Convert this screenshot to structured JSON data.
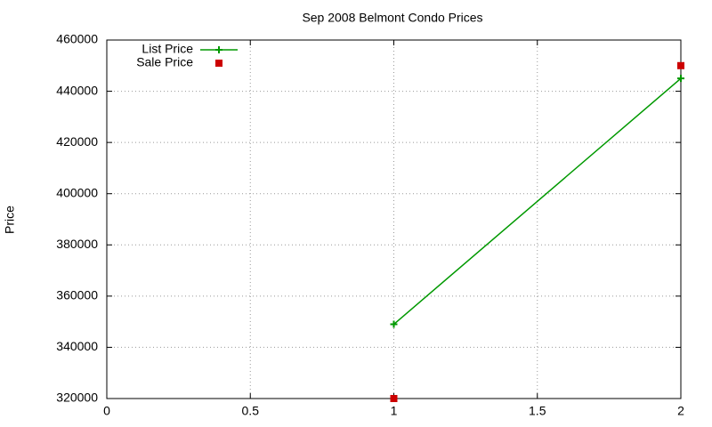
{
  "chart_data": {
    "type": "line",
    "title": "Sep 2008 Belmont Condo Prices",
    "y_label": "Price",
    "x": [
      1,
      2
    ],
    "series": [
      {
        "name": "List Price",
        "color": "#009900",
        "style": "linespoints",
        "values": [
          349000,
          445000
        ]
      },
      {
        "name": "Sale Price",
        "color": "#cc0000",
        "style": "points",
        "values": [
          320000,
          450000
        ]
      }
    ],
    "xlim": [
      0,
      2
    ],
    "xticks": [
      0,
      0.5,
      1,
      1.5,
      2
    ],
    "ylim": [
      320000,
      460000
    ],
    "yticks": [
      320000,
      340000,
      360000,
      380000,
      400000,
      420000,
      440000,
      460000
    ],
    "grid": true,
    "legend": "top-left"
  }
}
